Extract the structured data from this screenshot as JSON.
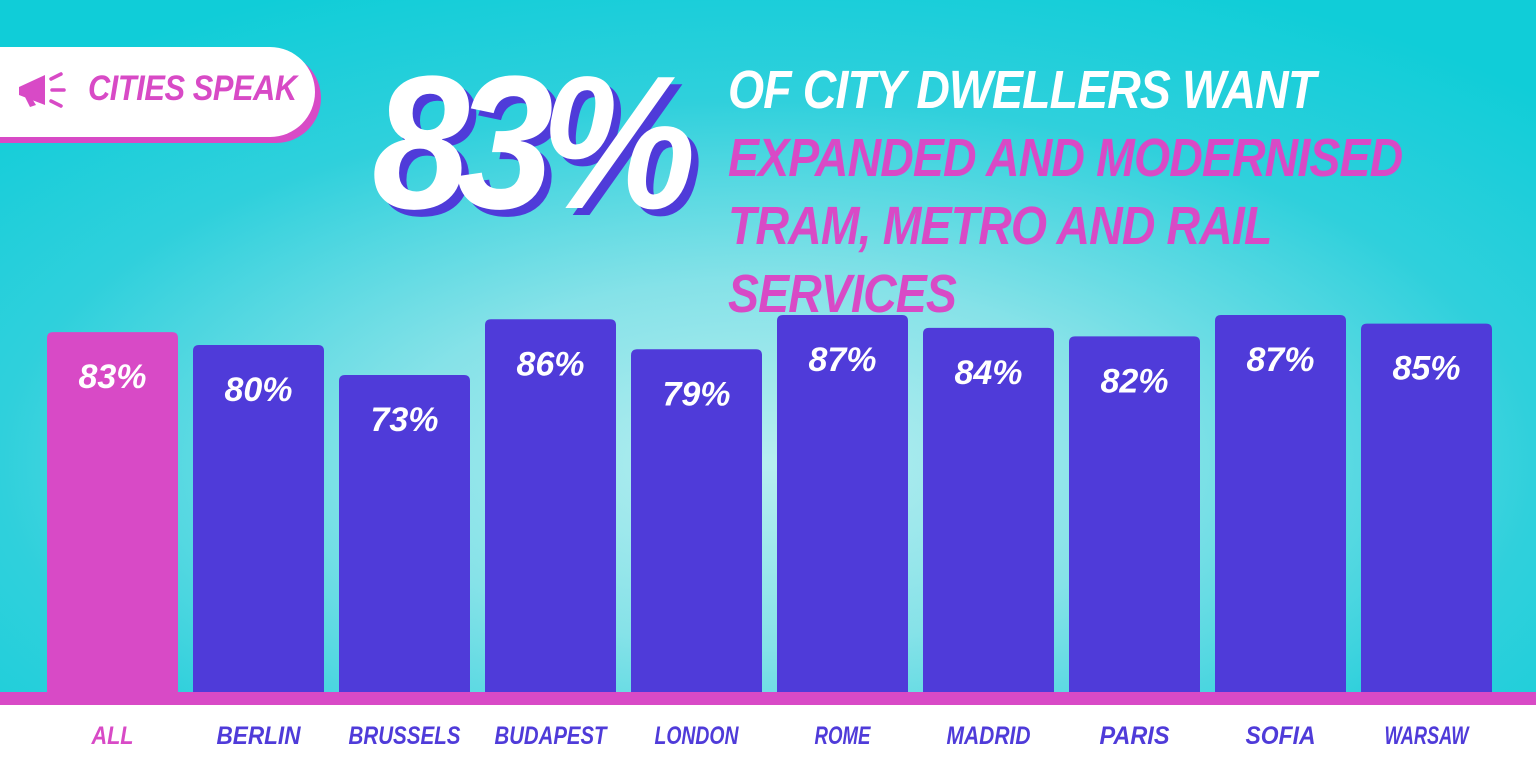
{
  "badge": {
    "label": "CITIES SPEAK",
    "icon": "megaphone-icon"
  },
  "headline": {
    "stat": "83%",
    "text_white": "OF CITY DWELLERS WANT ",
    "text_pink": "EXPANDED AND MODERNISED TRAM, METRO AND RAIL SERVICES"
  },
  "colors": {
    "highlight": "#d84ac6",
    "bar": "#4f3bd9",
    "white": "#ffffff"
  },
  "chart_data": {
    "type": "bar",
    "categories": [
      "ALL",
      "BERLIN",
      "BRUSSELS",
      "BUDAPEST",
      "LONDON",
      "ROME",
      "MADRID",
      "PARIS",
      "SOFIA",
      "WARSAW"
    ],
    "values": [
      83,
      80,
      73,
      86,
      79,
      87,
      84,
      82,
      87,
      85
    ],
    "value_labels": [
      "83%",
      "80%",
      "73%",
      "86%",
      "79%",
      "87%",
      "84%",
      "82%",
      "87%",
      "85%"
    ],
    "highlighted_category": "ALL",
    "unit": "%",
    "ylim": [
      0,
      87
    ],
    "grid": false,
    "legend": "none"
  }
}
